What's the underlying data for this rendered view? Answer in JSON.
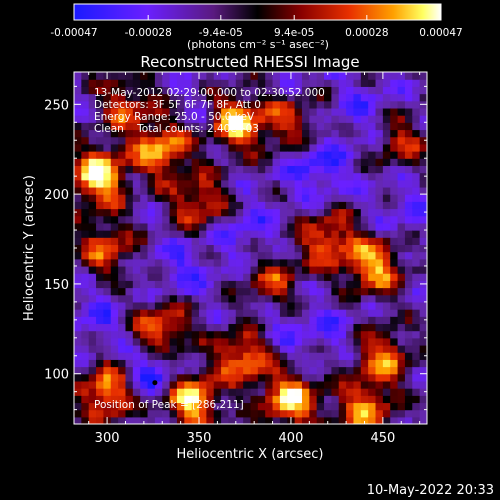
{
  "chart_data": {
    "type": "heatmap",
    "title": "Reconstructed RHESSI Image",
    "xlabel": "Heliocentric X (arcsec)",
    "ylabel": "Heliocentric Y (arcsec)",
    "xlim": [
      282,
      474
    ],
    "ylim": [
      72,
      268
    ],
    "x_ticks": [
      300,
      350,
      400,
      450
    ],
    "y_ticks": [
      100,
      150,
      200,
      250
    ],
    "colorbar": {
      "colormap": "blue-purple-black-red-orange-yellow-white",
      "range": [
        -0.00047,
        0.00047
      ],
      "tick_labels": [
        "-0.00047",
        "-0.00028",
        "-9.4e-05",
        "9.4e-05",
        "0.00028",
        "0.00047"
      ],
      "unit_label": "(photons cm⁻² s⁻¹ asec⁻²)"
    },
    "annotations": [
      "13-May-2012 02:29:00.000 to 02:30:52.000",
      "Detectors: 3F 5F 6F 7F 8F, Att 0",
      "Energy Range: 25.0 - 50.0 keV",
      "Clean    Total counts: 2.40e+03",
      "Position of Peak = [286,211]"
    ],
    "peak_position": [
      286,
      211
    ],
    "hot_regions": [
      {
        "x": 295,
        "y": 210,
        "level": 1.0
      },
      {
        "x": 330,
        "y": 225,
        "level": 0.75
      },
      {
        "x": 370,
        "y": 240,
        "level": 0.9
      },
      {
        "x": 350,
        "y": 195,
        "level": 0.5
      },
      {
        "x": 300,
        "y": 170,
        "level": 0.45
      },
      {
        "x": 445,
        "y": 160,
        "level": 0.75
      },
      {
        "x": 420,
        "y": 175,
        "level": 0.55
      },
      {
        "x": 330,
        "y": 125,
        "level": 0.6
      },
      {
        "x": 375,
        "y": 110,
        "level": 0.7
      },
      {
        "x": 300,
        "y": 90,
        "level": 0.75
      },
      {
        "x": 345,
        "y": 85,
        "level": 0.9
      },
      {
        "x": 400,
        "y": 85,
        "level": 0.8
      },
      {
        "x": 450,
        "y": 110,
        "level": 0.55
      },
      {
        "x": 440,
        "y": 80,
        "level": 0.6
      },
      {
        "x": 390,
        "y": 150,
        "level": 0.35
      },
      {
        "x": 460,
        "y": 230,
        "level": 0.3
      },
      {
        "x": 400,
        "y": 240,
        "level": 0.3
      },
      {
        "x": 310,
        "y": 250,
        "level": 0.4
      }
    ],
    "cold_regions": [
      {
        "x": 415,
        "y": 215,
        "level": -0.7
      },
      {
        "x": 440,
        "y": 245,
        "level": -0.5
      },
      {
        "x": 375,
        "y": 180,
        "level": -0.55
      },
      {
        "x": 340,
        "y": 160,
        "level": -0.55
      },
      {
        "x": 295,
        "y": 130,
        "level": -0.5
      },
      {
        "x": 325,
        "y": 100,
        "level": -0.85
      },
      {
        "x": 390,
        "y": 125,
        "level": -0.5
      },
      {
        "x": 420,
        "y": 125,
        "level": -0.5
      },
      {
        "x": 355,
        "y": 240,
        "level": -0.4
      },
      {
        "x": 465,
        "y": 190,
        "level": -0.45
      }
    ]
  },
  "timestamp": "10-May-2022 20:33"
}
